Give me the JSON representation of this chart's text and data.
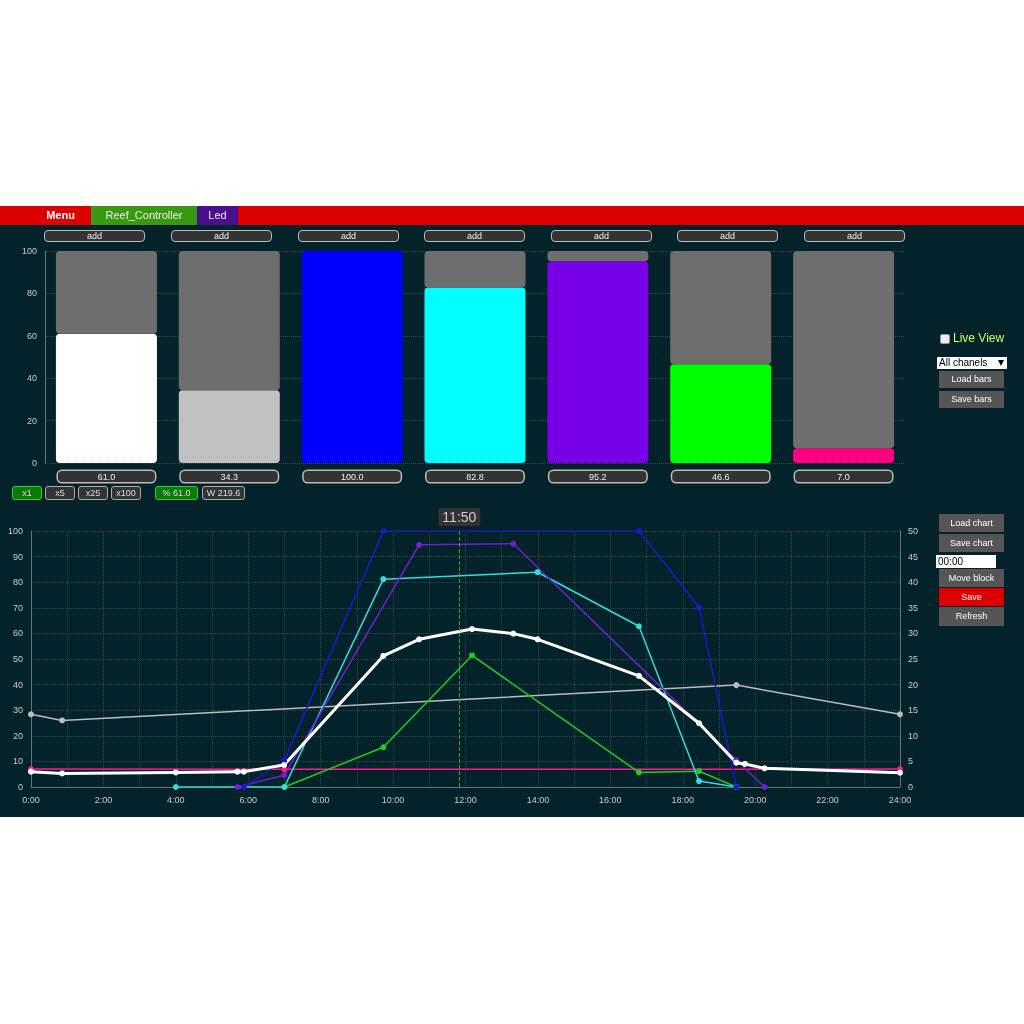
{
  "chart_data": [
    {
      "type": "other",
      "annotations": [
        "Menu",
        "Reef_Controller",
        "Led",
        "add",
        "add",
        "add",
        "add",
        "add",
        "add",
        "add",
        "x1",
        "x5",
        "x25",
        "x100",
        "% 61.0",
        "W 219.6",
        "Live View",
        "All chanels",
        "Load bars",
        "Save bars",
        "Load chart",
        "Save chart",
        "00:00",
        "Move block",
        "Save",
        "Refresh"
      ]
    },
    {
      "type": "bar",
      "stacked": true,
      "categories": [
        null,
        null,
        null,
        null,
        null,
        null,
        null
      ],
      "ylim": [
        0,
        100
      ],
      "yticks": [
        0,
        20,
        40,
        60,
        80,
        100
      ],
      "grid": "y",
      "series": [
        {
          "colors": [
            "#ffffff",
            "#c0c0c0",
            "#0000ff",
            "#00ffff",
            "#7700e6",
            "#00ff00",
            "#ff0080"
          ],
          "values": [
            61.0,
            34.3,
            100.0,
            82.8,
            95.2,
            46.6,
            7.0
          ],
          "value_labels": [
            "61.0",
            "34.3",
            "100.0",
            "82.8",
            "95.2",
            "46.6",
            "7.0"
          ]
        },
        {
          "color": "#6e6e6e",
          "values": [
            39.0,
            65.7,
            0.0,
            17.2,
            4.8,
            53.4,
            93.0
          ]
        }
      ]
    },
    {
      "type": "line",
      "xlim": [
        0,
        24
      ],
      "xticks": [
        {
          "value": 0,
          "label": "0:00"
        },
        {
          "value": 1,
          "label": null
        },
        {
          "value": 2,
          "label": "2:00"
        },
        {
          "value": 3,
          "label": null
        },
        {
          "value": 4,
          "label": "4:00"
        },
        {
          "value": 5,
          "label": null
        },
        {
          "value": 6,
          "label": "6:00"
        },
        {
          "value": 7,
          "label": null
        },
        {
          "value": 8,
          "label": "8:00"
        },
        {
          "value": 9,
          "label": null
        },
        {
          "value": 10,
          "label": "10:00"
        },
        {
          "value": 11,
          "label": null
        },
        {
          "value": 12,
          "label": "12:00"
        },
        {
          "value": 13,
          "label": null
        },
        {
          "value": 14,
          "label": "14:00"
        },
        {
          "value": 15,
          "label": null
        },
        {
          "value": 16,
          "label": "16:00"
        },
        {
          "value": 17,
          "label": null
        },
        {
          "value": 18,
          "label": "18:00"
        },
        {
          "value": 19,
          "label": null
        },
        {
          "value": 20,
          "label": "20:00"
        },
        {
          "value": 21,
          "label": null
        },
        {
          "value": 22,
          "label": "22:00"
        },
        {
          "value": 23,
          "label": null
        },
        {
          "value": 24,
          "label": "24:00"
        }
      ],
      "ylim": [
        0,
        100
      ],
      "yticks": [
        0,
        10,
        20,
        30,
        40,
        50,
        60,
        70,
        80,
        90,
        100
      ],
      "y2lim": [
        0,
        50
      ],
      "y2ticks": [
        0,
        5,
        10,
        15,
        20,
        25,
        30,
        35,
        40,
        45,
        50
      ],
      "grid": true,
      "marker": "circle",
      "ref_lines": [
        {
          "axis": "x",
          "value": 11.833333,
          "color": "#33aa33",
          "line_style": "dashed"
        }
      ],
      "annotations": [
        "11:50"
      ],
      "series": [
        {
          "color": "#bbbbbb",
          "x": [
            0,
            0.86,
            19.48,
            24
          ],
          "values": [
            28.4,
            26.0,
            39.8,
            28.4
          ]
        },
        {
          "color": "#ff1a8c",
          "x": [
            0,
            7.0,
            24
          ],
          "values": [
            7,
            6.9,
            7
          ]
        },
        {
          "color": "#22cc22",
          "x": [
            7.0,
            9.73,
            12.18,
            16.79,
            18.45,
            19.48
          ],
          "values": [
            0,
            15.5,
            51.4,
            5.7,
            6.2,
            0
          ]
        },
        {
          "color": "#33dddd",
          "x": [
            4.0,
            7.0,
            9.73,
            13.99,
            16.79,
            18.45,
            19.48
          ],
          "values": [
            0,
            0,
            81.2,
            83.9,
            62.8,
            2.3,
            0
          ]
        },
        {
          "color": "#7020d0",
          "x": [
            5.7,
            6.99,
            10.72,
            13.32,
            19.48,
            20.26
          ],
          "values": [
            0,
            4.6,
            94.6,
            95.0,
            10.5,
            0
          ]
        },
        {
          "color": "#1a1acc",
          "x": [
            5.88,
            6.99,
            9.73,
            16.79,
            18.45,
            19.48
          ],
          "values": [
            0,
            10.3,
            100,
            100,
            70.2,
            0
          ]
        },
        {
          "color": "#ffffff",
          "x": [
            0,
            0.86,
            4.0,
            5.7,
            5.88,
            6.99,
            9.73,
            10.72,
            12.18,
            13.32,
            13.99,
            16.79,
            18.45,
            19.48,
            19.72,
            20.26,
            24
          ],
          "values": [
            6,
            5.3,
            5.7,
            6,
            6,
            8.6,
            51.2,
            57.7,
            61.7,
            59.9,
            57.7,
            43.4,
            24.9,
            9.5,
            9,
            7.3,
            5.6
          ]
        }
      ]
    }
  ]
}
